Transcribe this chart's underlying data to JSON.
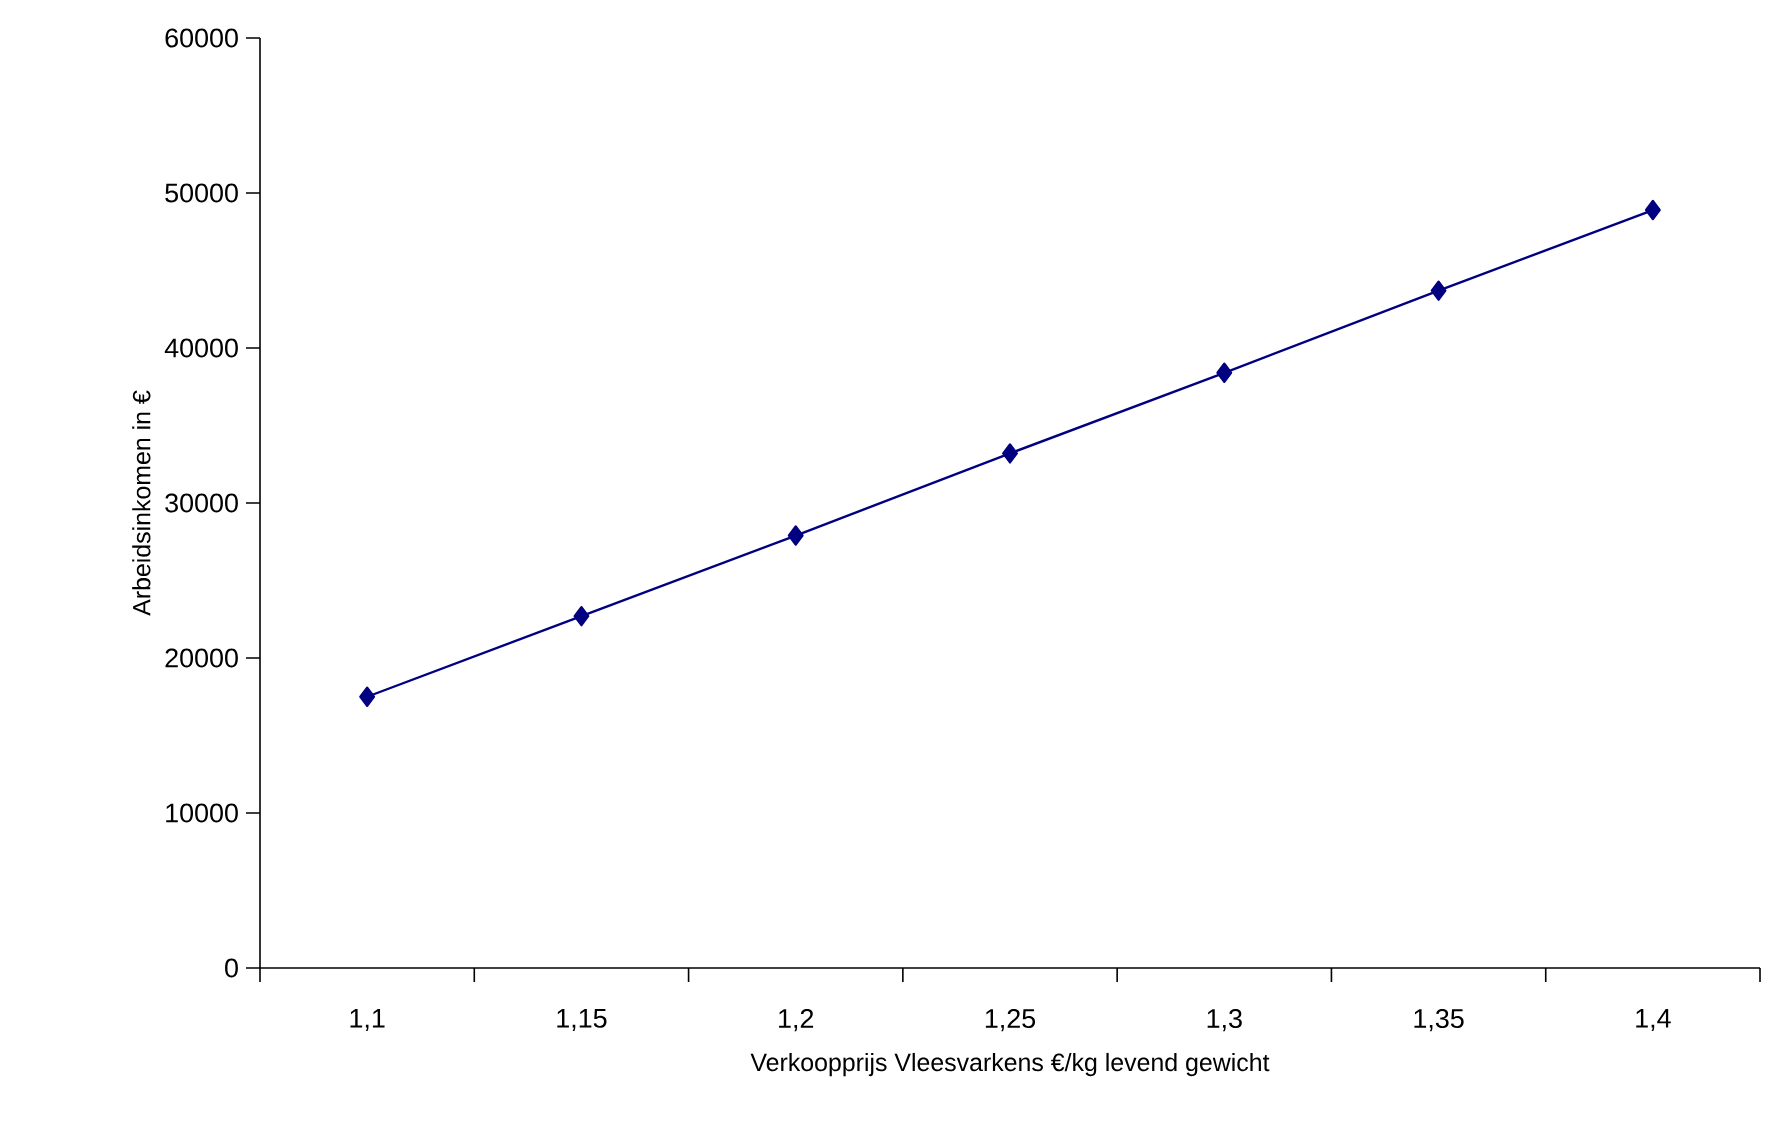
{
  "chart_data": {
    "type": "line",
    "xlabel": "Verkoopprijs Vleesvarkens €/kg levend gewicht",
    "ylabel": "Arbeidsinkomen in €",
    "categories": [
      "1,1",
      "1,15",
      "1,2",
      "1,25",
      "1,3",
      "1,35",
      "1,4"
    ],
    "values": [
      17500,
      22700,
      27900,
      33200,
      38400,
      43700,
      48900
    ],
    "color": "#000080",
    "marker": "diamond",
    "line_style": "solid",
    "ylim": [
      0,
      60000
    ],
    "yticks": [
      0,
      10000,
      20000,
      30000,
      40000,
      50000,
      60000
    ]
  }
}
